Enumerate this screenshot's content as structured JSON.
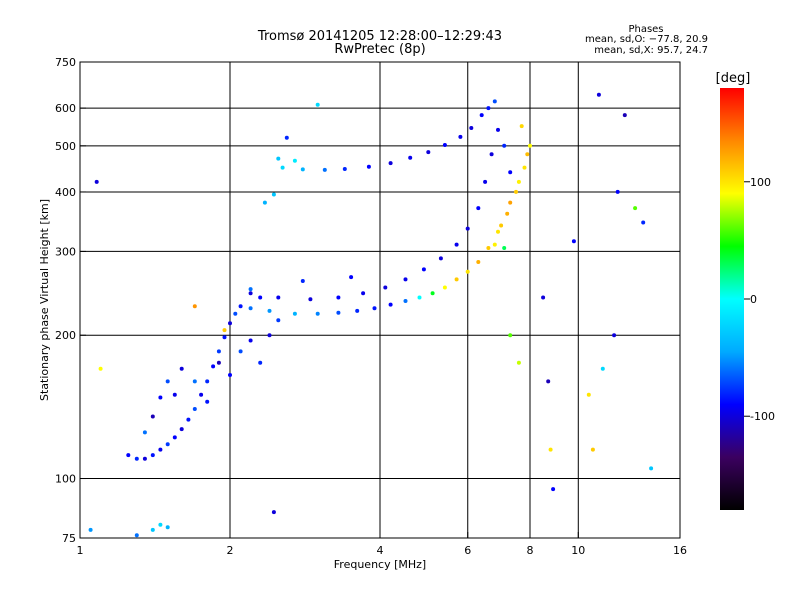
{
  "chart_data": {
    "type": "scatter",
    "title": "Tromsø 20141205 12:28:00–12:29:43",
    "subtitle": "RwPretec (8p)",
    "xlabel": "Frequency [MHz]",
    "ylabel": "Stationary phase Virtual Height [km]",
    "xscale": "log",
    "yscale": "log",
    "xlim": [
      1,
      16
    ],
    "ylim": [
      75,
      750
    ],
    "x_ticks": [
      1,
      2,
      4,
      6,
      8,
      10,
      16
    ],
    "y_ticks": [
      75,
      100,
      200,
      300,
      400,
      500,
      600,
      750
    ],
    "grid": true,
    "phase_stats": {
      "heading": "Phases",
      "line_o": "mean, sd,O: −77.8, 20.9",
      "line_x": "mean, sd,X:  95.7, 24.7"
    },
    "colorbar": {
      "label": "[deg]",
      "range": [
        -180,
        180
      ],
      "ticks": [
        100,
        0,
        -100
      ],
      "colors": [
        "#000000",
        "#3b0060",
        "#0000ff",
        "#00aaff",
        "#00ffff",
        "#00ff00",
        "#ffff00",
        "#ff8800",
        "#ff0000"
      ]
    },
    "series": [
      {
        "points": [
          [
            1.25,
            112,
            -90
          ],
          [
            1.3,
            110,
            -80
          ],
          [
            1.35,
            110,
            -100
          ],
          [
            1.4,
            112,
            -85
          ],
          [
            1.45,
            115,
            -95
          ],
          [
            1.5,
            118,
            -75
          ],
          [
            1.55,
            122,
            -90
          ],
          [
            1.6,
            127,
            -100
          ],
          [
            1.65,
            133,
            -85
          ],
          [
            1.7,
            140,
            -70
          ],
          [
            1.75,
            150,
            -95
          ],
          [
            1.8,
            160,
            -80
          ],
          [
            1.85,
            172,
            -90
          ],
          [
            1.9,
            185,
            -75
          ],
          [
            1.95,
            198,
            -85
          ],
          [
            2.0,
            212,
            -100
          ],
          [
            2.05,
            222,
            -70
          ],
          [
            2.1,
            230,
            -85
          ],
          [
            1.35,
            125,
            -60
          ],
          [
            1.4,
            135,
            -110
          ],
          [
            1.45,
            148,
            -90
          ],
          [
            1.5,
            160,
            -70
          ],
          [
            1.55,
            150,
            -95
          ],
          [
            1.6,
            170,
            -100
          ],
          [
            1.7,
            160,
            -60
          ],
          [
            1.8,
            145,
            -85
          ],
          [
            1.9,
            175,
            -110
          ],
          [
            2.0,
            165,
            -90
          ],
          [
            2.1,
            185,
            -70
          ],
          [
            2.2,
            195,
            -95
          ],
          [
            2.3,
            175,
            -80
          ],
          [
            2.4,
            200,
            -100
          ],
          [
            2.5,
            215,
            -75
          ],
          [
            2.2,
            250,
            -60
          ],
          [
            2.3,
            240,
            -90
          ]
        ]
      },
      {
        "points": [
          [
            2.2,
            228,
            -60
          ],
          [
            2.4,
            225,
            -50
          ],
          [
            2.7,
            222,
            -40
          ],
          [
            3.0,
            222,
            -55
          ],
          [
            3.3,
            223,
            -70
          ],
          [
            3.6,
            225,
            -80
          ],
          [
            3.9,
            228,
            -85
          ],
          [
            4.2,
            232,
            -90
          ],
          [
            4.5,
            236,
            -60
          ],
          [
            4.8,
            240,
            0
          ],
          [
            5.1,
            245,
            40
          ],
          [
            5.4,
            252,
            90
          ],
          [
            5.7,
            262,
            110
          ],
          [
            6.0,
            272,
            100
          ],
          [
            6.3,
            285,
            120
          ],
          [
            6.6,
            305,
            110
          ],
          [
            6.9,
            330,
            100
          ],
          [
            7.2,
            360,
            120
          ],
          [
            7.5,
            400,
            110
          ],
          [
            7.8,
            450,
            100
          ],
          [
            8.0,
            500,
            90
          ],
          [
            7.7,
            550,
            105
          ],
          [
            7.9,
            480,
            115
          ],
          [
            7.6,
            420,
            95
          ],
          [
            7.3,
            380,
            125
          ],
          [
            7.0,
            340,
            110
          ],
          [
            6.8,
            310,
            95
          ]
        ]
      },
      {
        "points": [
          [
            2.2,
            245,
            -100
          ],
          [
            2.5,
            240,
            -95
          ],
          [
            2.9,
            238,
            -100
          ],
          [
            3.3,
            240,
            -90
          ],
          [
            3.7,
            245,
            -95
          ],
          [
            4.1,
            252,
            -100
          ],
          [
            4.5,
            262,
            -95
          ],
          [
            4.9,
            275,
            -90
          ],
          [
            5.3,
            290,
            -100
          ],
          [
            5.7,
            310,
            -95
          ],
          [
            6.0,
            335,
            -100
          ],
          [
            6.3,
            370,
            -90
          ],
          [
            6.5,
            420,
            -95
          ],
          [
            6.7,
            480,
            -100
          ],
          [
            6.9,
            540,
            -95
          ],
          [
            6.6,
            600,
            -85
          ],
          [
            6.8,
            620,
            -70
          ],
          [
            6.4,
            580,
            -90
          ],
          [
            7.1,
            500,
            -80
          ],
          [
            7.3,
            440,
            -90
          ],
          [
            2.8,
            260,
            -80
          ],
          [
            3.5,
            265,
            -90
          ]
        ]
      },
      {
        "points": [
          [
            2.55,
            450,
            -20
          ],
          [
            2.8,
            446,
            -40
          ],
          [
            3.1,
            445,
            -60
          ],
          [
            3.4,
            447,
            -80
          ],
          [
            3.8,
            452,
            -90
          ],
          [
            4.2,
            460,
            -100
          ],
          [
            4.6,
            472,
            -95
          ],
          [
            5.0,
            485,
            -100
          ],
          [
            5.4,
            502,
            -90
          ],
          [
            5.8,
            522,
            -95
          ],
          [
            6.1,
            545,
            -100
          ],
          [
            2.5,
            470,
            -30
          ],
          [
            2.7,
            465,
            -10
          ],
          [
            2.35,
            380,
            -40
          ],
          [
            2.45,
            395,
            -30
          ],
          [
            2.6,
            520,
            -80
          ]
        ]
      },
      {
        "points": [
          [
            1.4,
            78,
            -30
          ],
          [
            1.45,
            80,
            -20
          ],
          [
            1.5,
            79,
            -40
          ],
          [
            1.3,
            76,
            -60
          ],
          [
            1.05,
            78,
            -50
          ],
          [
            1.1,
            170,
            90
          ],
          [
            1.08,
            420,
            -100
          ],
          [
            1.95,
            205,
            110
          ],
          [
            1.7,
            230,
            130
          ],
          [
            2.45,
            85,
            -100
          ],
          [
            3.0,
            610,
            -20
          ],
          [
            7.1,
            305,
            30
          ],
          [
            7.3,
            200,
            60
          ],
          [
            7.6,
            175,
            80
          ],
          [
            8.5,
            240,
            -100
          ],
          [
            8.7,
            160,
            -110
          ],
          [
            8.8,
            115,
            100
          ],
          [
            8.9,
            95,
            -90
          ],
          [
            9.8,
            315,
            -90
          ],
          [
            10.5,
            150,
            100
          ],
          [
            10.7,
            115,
            110
          ],
          [
            11.0,
            640,
            -100
          ],
          [
            11.8,
            200,
            -100
          ],
          [
            12.0,
            400,
            -90
          ],
          [
            13.0,
            370,
            60
          ],
          [
            13.5,
            345,
            -80
          ],
          [
            14.0,
            105,
            -30
          ],
          [
            11.2,
            170,
            -20
          ],
          [
            12.4,
            580,
            -110
          ]
        ]
      }
    ]
  }
}
